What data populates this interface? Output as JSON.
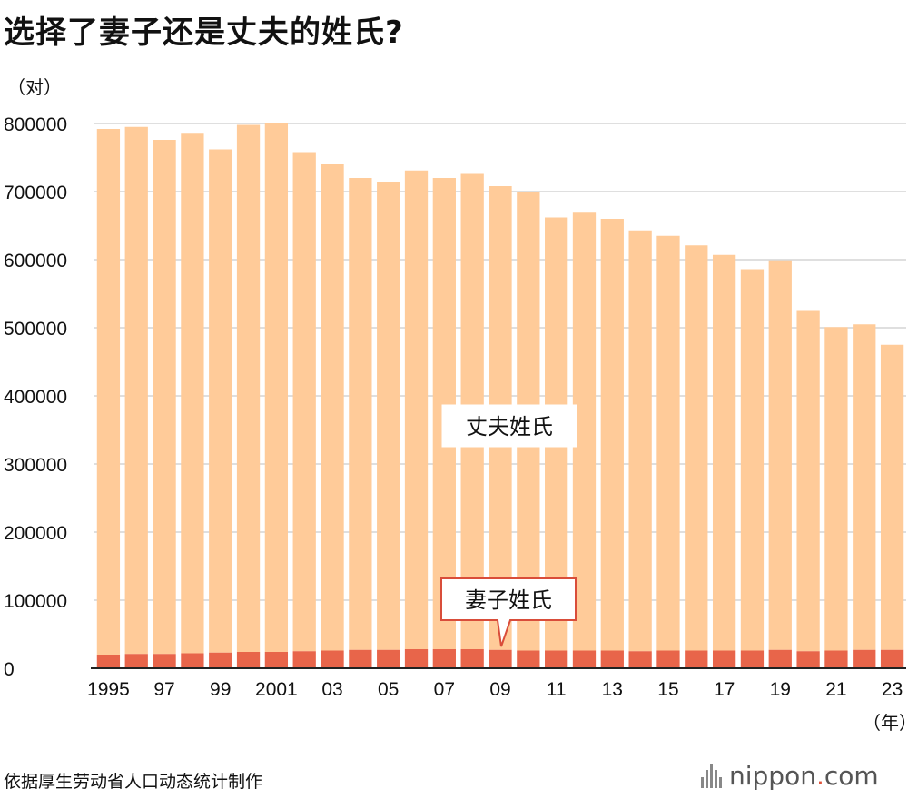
{
  "title": "选择了妻子还是丈夫的姓氏?",
  "y_unit": "（对）",
  "x_unit": "（年）",
  "source": "依据厚生劳动省人口动态统计制作",
  "logo": {
    "text_main": "nippon",
    "text_dot": ".",
    "text_tail": "com"
  },
  "colors": {
    "husband": "#FFCB99",
    "wife": "#E8654A",
    "grid": "#cccccc"
  },
  "chart_data": {
    "type": "bar",
    "stacked": true,
    "title": "选择了妻子还是丈夫的姓氏?",
    "xlabel": "（年）",
    "ylabel": "（对）",
    "ylim": [
      0,
      800000
    ],
    "y_ticks": [
      "0",
      "100000",
      "200000",
      "300000",
      "400000",
      "500000",
      "600000",
      "700000",
      "800000"
    ],
    "categories": [
      "1995",
      "1996",
      "1997",
      "1998",
      "1999",
      "2000",
      "2001",
      "2002",
      "2003",
      "2004",
      "2005",
      "2006",
      "2007",
      "2008",
      "2009",
      "2010",
      "2011",
      "2012",
      "2013",
      "2014",
      "2015",
      "2016",
      "2017",
      "2018",
      "2019",
      "2020",
      "2021",
      "2022",
      "2023"
    ],
    "x_tick_labels": [
      "1995",
      "",
      "97",
      "",
      "99",
      "",
      "2001",
      "",
      "03",
      "",
      "05",
      "",
      "07",
      "",
      "09",
      "",
      "11",
      "",
      "13",
      "",
      "15",
      "",
      "17",
      "",
      "19",
      "",
      "21",
      "",
      "23"
    ],
    "series": [
      {
        "name": "妻子姓氏",
        "values": [
          20000,
          21000,
          21000,
          22000,
          23000,
          24000,
          24000,
          25000,
          26000,
          27000,
          27000,
          28000,
          28000,
          28000,
          27000,
          26000,
          26000,
          26000,
          26000,
          25000,
          26000,
          26000,
          26000,
          26000,
          27000,
          25000,
          26000,
          27000,
          27000
        ]
      },
      {
        "name": "丈夫姓氏",
        "values": [
          772000,
          774000,
          755000,
          763000,
          739000,
          774000,
          776000,
          733000,
          714000,
          693000,
          687000,
          703000,
          692000,
          698000,
          681000,
          674000,
          636000,
          643000,
          634000,
          618000,
          609000,
          595000,
          581000,
          560000,
          572000,
          501000,
          475000,
          478000,
          448000
        ]
      }
    ],
    "annotations": [
      "丈夫姓氏",
      "妻子姓氏"
    ]
  }
}
